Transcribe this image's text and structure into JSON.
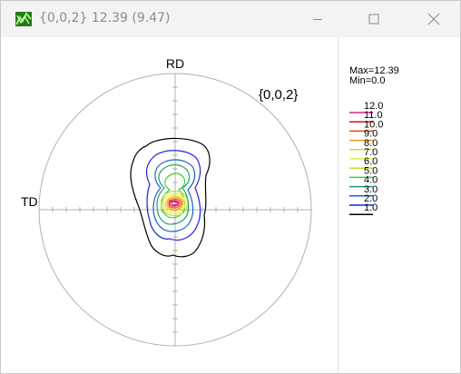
{
  "window": {
    "title": "{0,0,2} 12.39 (9.47)",
    "icon": "chart-app-icon",
    "controls": [
      "minimize-icon",
      "maximize-icon",
      "close-icon"
    ]
  },
  "pole_figure": {
    "top_label": "RD",
    "left_label": "TD",
    "plane_label": "{0,0,2}"
  },
  "legend": {
    "max_text": "Max=12.39",
    "min_text": "Min=0.0",
    "levels": [
      {
        "value": "12.0",
        "color": "#e0208a"
      },
      {
        "value": "11.0",
        "color": "#d01020"
      },
      {
        "value": "10.0",
        "color": "#f04020"
      },
      {
        "value": "9.0",
        "color": "#f59a20"
      },
      {
        "value": "8.0",
        "color": "#f0d020"
      },
      {
        "value": "7.0",
        "color": "#e6ee30"
      },
      {
        "value": "6.0",
        "color": "#b8e030"
      },
      {
        "value": "5.0",
        "color": "#38d038"
      },
      {
        "value": "4.0",
        "color": "#20a070"
      },
      {
        "value": "3.0",
        "color": "#2060c0"
      },
      {
        "value": "2.0",
        "color": "#2020e0"
      },
      {
        "value": "1.0",
        "color": "#000000"
      }
    ]
  }
}
